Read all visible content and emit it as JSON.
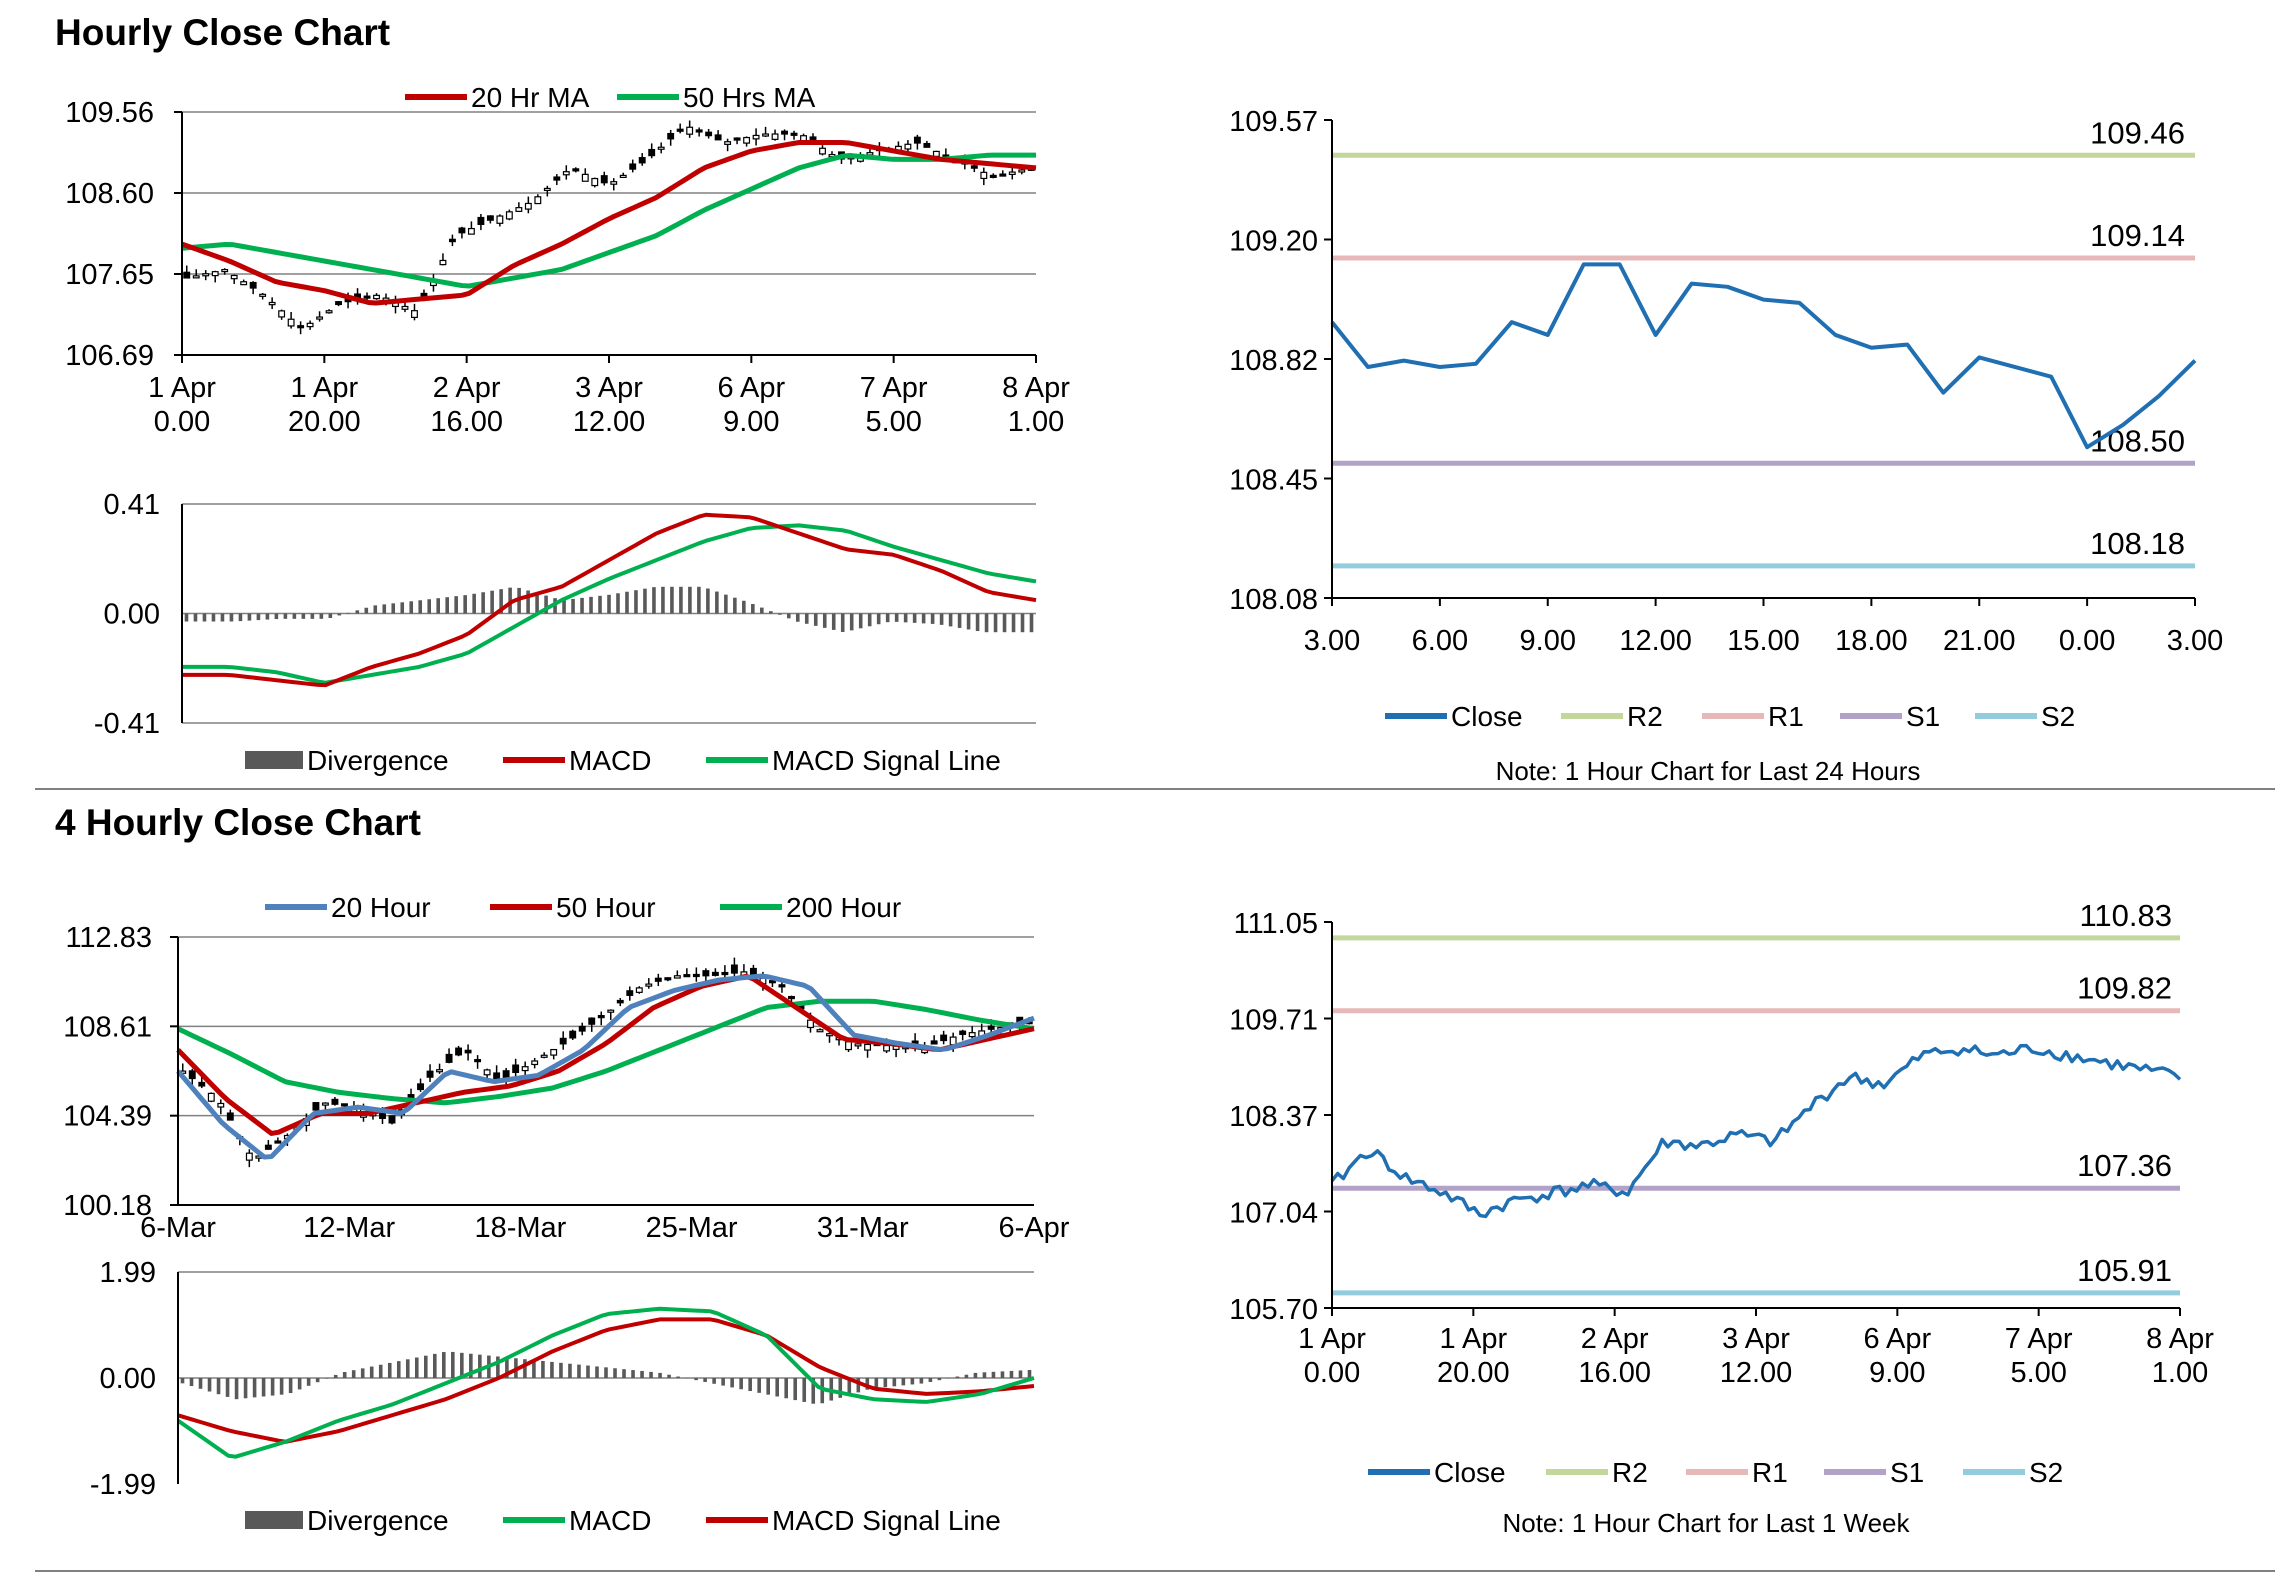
{
  "sections": {
    "hourly_title": "Hourly Close Chart",
    "four_hourly_title": "4 Hourly Close Chart"
  },
  "colors": {
    "ma20_red": "#C00000",
    "ma50_green": "#00B050",
    "ma20_blue": "#4F81BD",
    "close_blue": "#1F6FB2",
    "r2": "#C3D69B",
    "r1": "#E6B9B8",
    "s1": "#B3A2C7",
    "s2": "#93CDDD",
    "divergence": "#595959",
    "grid": "#808080"
  },
  "chart_data": [
    {
      "id": "hourly_price",
      "type": "candlestick",
      "ylim": [
        106.69,
        109.56
      ],
      "yticks": [
        "109.56",
        "108.60",
        "107.65",
        "106.69"
      ],
      "xticks": [
        [
          "1 Apr",
          "0.00"
        ],
        [
          "1 Apr",
          "20.00"
        ],
        [
          "2 Apr",
          "16.00"
        ],
        [
          "3 Apr",
          "12.00"
        ],
        [
          "6 Apr",
          "9.00"
        ],
        [
          "7 Apr",
          "5.00"
        ],
        [
          "8 Apr",
          "1.00"
        ]
      ],
      "legend": [
        "20 Hr MA",
        "50 Hrs MA"
      ],
      "close_anchors": [
        107.6,
        107.7,
        107.4,
        107.0,
        107.3,
        107.4,
        107.2,
        108.1,
        108.3,
        108.5,
        108.9,
        108.7,
        109.0,
        109.4,
        109.2,
        109.3,
        109.3,
        109.0,
        109.1,
        109.2,
        109.0,
        108.8,
        108.9
      ],
      "series": [
        {
          "name": "20 Hr MA",
          "values": [
            108.0,
            107.8,
            107.55,
            107.45,
            107.3,
            107.35,
            107.4,
            107.75,
            108.0,
            108.3,
            108.55,
            108.9,
            109.1,
            109.2,
            109.2,
            109.1,
            109.0,
            108.95,
            108.9
          ]
        },
        {
          "name": "50 Hrs MA",
          "values": [
            107.95,
            108.0,
            107.9,
            107.8,
            107.7,
            107.6,
            107.5,
            107.6,
            107.7,
            107.9,
            108.1,
            108.4,
            108.65,
            108.9,
            109.05,
            109.0,
            109.0,
            109.05,
            109.05
          ]
        }
      ]
    },
    {
      "id": "hourly_macd",
      "type": "line+bar",
      "ylim": [
        -0.41,
        0.41
      ],
      "yticks": [
        "0.41",
        "0.00",
        "-0.41"
      ],
      "legend": [
        "Divergence",
        "MACD",
        "MACD Signal Line"
      ],
      "series": [
        {
          "name": "MACD",
          "values": [
            -0.23,
            -0.23,
            -0.25,
            -0.27,
            -0.2,
            -0.15,
            -0.08,
            0.05,
            0.1,
            0.2,
            0.3,
            0.37,
            0.36,
            0.3,
            0.24,
            0.22,
            0.16,
            0.08,
            0.05
          ]
        },
        {
          "name": "MACD Signal Line",
          "values": [
            -0.2,
            -0.2,
            -0.22,
            -0.26,
            -0.23,
            -0.2,
            -0.15,
            -0.05,
            0.05,
            0.13,
            0.2,
            0.27,
            0.32,
            0.33,
            0.31,
            0.25,
            0.2,
            0.15,
            0.12
          ]
        },
        {
          "name": "Divergence",
          "values": [
            -0.03,
            -0.03,
            -0.02,
            -0.02,
            0.03,
            0.05,
            0.07,
            0.1,
            0.05,
            0.07,
            0.1,
            0.1,
            0.04,
            -0.03,
            -0.07,
            -0.03,
            -0.04,
            -0.07,
            -0.07
          ]
        }
      ]
    },
    {
      "id": "hourly_close_24h",
      "type": "line",
      "ylim": [
        108.08,
        109.57
      ],
      "yticks": [
        "109.57",
        "109.20",
        "108.82",
        "108.45",
        "108.08"
      ],
      "x_range": [
        0,
        24
      ],
      "xticks": [
        "3.00",
        "6.00",
        "9.00",
        "12.00",
        "15.00",
        "18.00",
        "21.00",
        "0.00",
        "3.00"
      ],
      "series": [
        {
          "name": "Close",
          "x": [
            0,
            1,
            2,
            3,
            4,
            5,
            6,
            7,
            8,
            9,
            10,
            11,
            12,
            13,
            14,
            15,
            16,
            17,
            18,
            19,
            20,
            21,
            22,
            23,
            24
          ],
          "values": [
            108.94,
            108.8,
            108.82,
            108.8,
            108.81,
            108.94,
            108.9,
            109.12,
            109.12,
            108.9,
            109.06,
            109.05,
            109.01,
            109.0,
            108.9,
            108.86,
            108.87,
            108.72,
            108.83,
            108.8,
            108.77,
            108.55,
            108.62,
            108.71,
            108.82
          ]
        },
        {
          "name": "R2",
          "level": 109.46,
          "label": "109.46"
        },
        {
          "name": "R1",
          "level": 109.14,
          "label": "109.14"
        },
        {
          "name": "S1",
          "level": 108.5,
          "label": "108.50"
        },
        {
          "name": "S2",
          "level": 108.18,
          "label": "108.18"
        }
      ],
      "legend": [
        "Close",
        "R2",
        "R1",
        "S1",
        "S2"
      ],
      "note": "Note: 1 Hour Chart for Last 24 Hours"
    },
    {
      "id": "four_hourly_price",
      "type": "candlestick",
      "ylim": [
        100.18,
        112.83
      ],
      "yticks": [
        "112.83",
        "108.61",
        "104.39",
        "100.18"
      ],
      "xticks": [
        "6-Mar",
        "12-Mar",
        "18-Mar",
        "25-Mar",
        "31-Mar",
        "6-Apr"
      ],
      "legend": [
        "20 Hour",
        "50 Hour",
        "200 Hour"
      ],
      "close_anchors": [
        106.5,
        105.2,
        102.3,
        103.5,
        105.0,
        104.8,
        104.0,
        106.2,
        107.5,
        106.0,
        107.0,
        108.0,
        109.2,
        110.5,
        111.0,
        111.0,
        111.2,
        110.5,
        108.5,
        107.8,
        107.7,
        107.6,
        108.2,
        108.5,
        108.8
      ],
      "series": [
        {
          "name": "20 Hour",
          "values": [
            106.5,
            104.0,
            102.3,
            104.5,
            104.8,
            104.5,
            106.5,
            106.0,
            106.3,
            107.5,
            109.5,
            110.3,
            110.8,
            111.0,
            110.5,
            108.2,
            107.8,
            107.5,
            108.2,
            109.0
          ]
        },
        {
          "name": "50 Hour",
          "values": [
            107.5,
            105.2,
            103.5,
            104.5,
            104.5,
            105.0,
            105.5,
            105.8,
            106.5,
            107.8,
            109.5,
            110.5,
            111.0,
            109.5,
            108.0,
            107.8,
            107.5,
            108.0,
            108.5
          ]
        },
        {
          "name": "200 Hour",
          "values": [
            108.5,
            107.3,
            106.0,
            105.5,
            105.2,
            105.0,
            105.3,
            105.7,
            106.5,
            107.5,
            108.5,
            109.5,
            109.8,
            109.8,
            109.4,
            108.9,
            108.5
          ]
        }
      ]
    },
    {
      "id": "four_hourly_macd",
      "type": "line+bar",
      "ylim": [
        -1.99,
        1.99
      ],
      "yticks": [
        "1.99",
        "0.00",
        "-1.99"
      ],
      "legend": [
        "Divergence",
        "MACD",
        "MACD Signal Line"
      ],
      "series": [
        {
          "name": "MACD",
          "values": [
            -0.8,
            -1.5,
            -1.2,
            -0.8,
            -0.5,
            -0.1,
            0.3,
            0.8,
            1.2,
            1.3,
            1.25,
            0.8,
            -0.2,
            -0.4,
            -0.45,
            -0.3,
            0.0
          ]
        },
        {
          "name": "MACD Signal Line",
          "values": [
            -0.7,
            -1.0,
            -1.2,
            -1.0,
            -0.7,
            -0.4,
            0.0,
            0.5,
            0.9,
            1.1,
            1.1,
            0.8,
            0.2,
            -0.2,
            -0.3,
            -0.25,
            -0.15
          ]
        },
        {
          "name": "Divergence",
          "values": [
            -0.1,
            -0.4,
            -0.3,
            0.1,
            0.3,
            0.5,
            0.4,
            0.3,
            0.2,
            0.1,
            -0.1,
            -0.3,
            -0.5,
            -0.2,
            -0.1,
            0.1,
            0.15
          ]
        }
      ]
    },
    {
      "id": "hourly_close_1w",
      "type": "line",
      "ylim": [
        105.7,
        111.05
      ],
      "yticks": [
        "111.05",
        "109.71",
        "108.37",
        "107.04",
        "105.70"
      ],
      "xticks": [
        [
          "1 Apr",
          "0.00"
        ],
        [
          "1 Apr",
          "20.00"
        ],
        [
          "2 Apr",
          "16.00"
        ],
        [
          "3 Apr",
          "12.00"
        ],
        [
          "6 Apr",
          "9.00"
        ],
        [
          "7 Apr",
          "5.00"
        ],
        [
          "8 Apr",
          "1.00"
        ]
      ],
      "close_anchors": [
        107.4,
        107.9,
        107.5,
        107.3,
        107.0,
        107.2,
        107.3,
        107.4,
        107.3,
        108.0,
        107.95,
        108.1,
        108.0,
        108.5,
        108.9,
        108.8,
        109.2,
        109.3,
        109.2,
        109.3,
        109.2,
        109.1,
        109.0,
        108.9
      ],
      "series": [
        {
          "name": "R2",
          "level": 110.83,
          "label": "110.83"
        },
        {
          "name": "R1",
          "level": 109.82,
          "label": "109.82"
        },
        {
          "name": "S1",
          "level": 107.36,
          "label": "107.36"
        },
        {
          "name": "S2",
          "level": 105.91,
          "label": "105.91"
        }
      ],
      "legend": [
        "Close",
        "R2",
        "R1",
        "S1",
        "S2"
      ],
      "note": "Note: 1 Hour Chart for Last 1 Week"
    }
  ]
}
